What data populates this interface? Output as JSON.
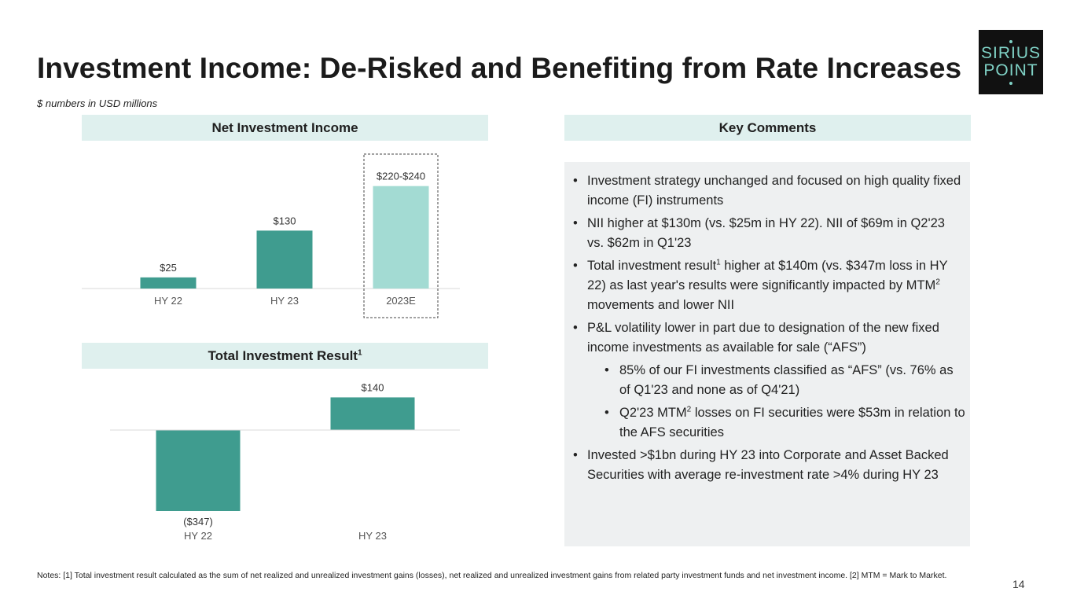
{
  "title": "Investment Income: De-Risked and Benefiting from Rate Increases",
  "subtitle": "$ numbers in USD millions",
  "logo": {
    "line1": "SIRIUS",
    "line2": "POINT"
  },
  "nii_header": "Net Investment Income",
  "tir_header": "Total Investment Result",
  "tir_header_sup": "1",
  "comments_header": "Key Comments",
  "chart_data": [
    {
      "type": "bar",
      "title": "Net Investment Income",
      "categories": [
        "HY 22",
        "HY 23",
        "2023E"
      ],
      "values": [
        25,
        130,
        230
      ],
      "value_labels": [
        "$25",
        "$130",
        "$220-$240"
      ],
      "colors": [
        "#3f9c8f",
        "#3f9c8f",
        "#a3dbd3"
      ],
      "ylim": [
        0,
        240
      ],
      "xlabel": "",
      "ylabel": "",
      "highlight_category": "2023E"
    },
    {
      "type": "bar",
      "title": "Total Investment Result",
      "categories": [
        "HY 22",
        "HY 23"
      ],
      "values": [
        -347,
        140
      ],
      "value_labels": [
        "($347)",
        "$140"
      ],
      "colors": [
        "#3f9c8f",
        "#3f9c8f"
      ],
      "ylim": [
        -360,
        150
      ],
      "xlabel": "",
      "ylabel": ""
    }
  ],
  "comments": [
    {
      "level": 1,
      "parts": [
        {
          "t": "Investment strategy unchanged and focused on high quality fixed income (FI) instruments"
        }
      ]
    },
    {
      "level": 1,
      "parts": [
        {
          "t": "NII higher at $130m (vs. $25m in HY 22). NII of $69m in Q2'23 vs. $62m in Q1'23"
        }
      ]
    },
    {
      "level": 1,
      "parts": [
        {
          "t": "Total investment result"
        },
        {
          "sup": "1"
        },
        {
          "t": " higher at $140m (vs. $347m loss in HY 22) as last year's results were significantly impacted by MTM"
        },
        {
          "sup": "2"
        },
        {
          "t": " movements and lower NII"
        }
      ]
    },
    {
      "level": 1,
      "parts": [
        {
          "t": "P&L volatility lower in part due to designation of the new fixed income investments as available for sale (“AFS”)"
        }
      ]
    },
    {
      "level": 2,
      "parts": [
        {
          "t": "85% of our FI investments classified as “AFS” (vs. 76% as of Q1'23 and none as of Q4'21)"
        }
      ]
    },
    {
      "level": 2,
      "parts": [
        {
          "t": "Q2'23 MTM"
        },
        {
          "sup": "2"
        },
        {
          "t": " losses on FI securities were $53m in relation to the AFS securities"
        }
      ]
    },
    {
      "level": 1,
      "parts": [
        {
          "t": "Invested >$1bn during HY 23 into Corporate and Asset Backed Securities with average re-investment rate >4% during HY 23"
        }
      ]
    }
  ],
  "bullet_char": "•",
  "notes": "Notes: [1] Total investment result calculated as the sum of net realized and unrealized investment gains (losses), net realized and unrealized investment gains from related party investment funds and net investment income. [2] MTM = Mark to Market.",
  "page_number": "14",
  "colors": {
    "bar_dark": "#3f9c8f",
    "bar_light": "#a3dbd3",
    "header_bg": "#dff0ee",
    "panel_bg": "#eef0f1"
  }
}
